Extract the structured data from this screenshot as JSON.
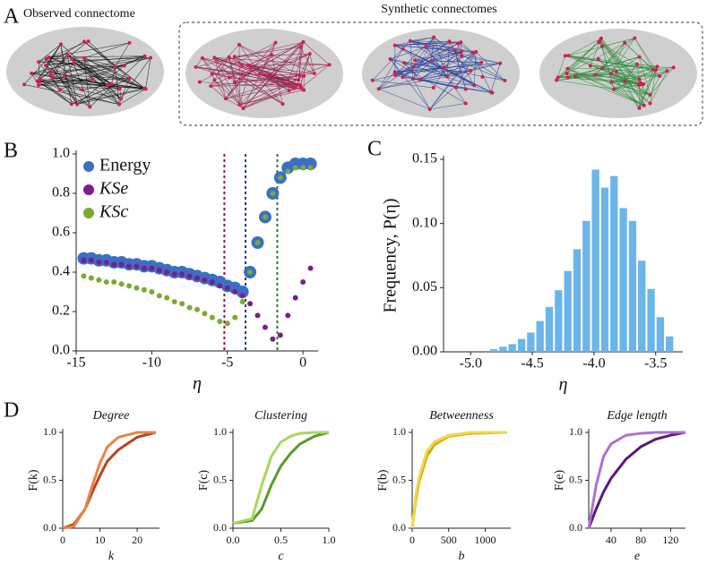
{
  "panel_labels": [
    "A",
    "B",
    "C",
    "D"
  ],
  "panel_a": {
    "observed_title": "Observed connectome",
    "synthetic_title": "Synthetic connectomes"
  },
  "chart_data": [
    {
      "type": "scatter",
      "xlabel": "η",
      "x": [
        -14.5,
        -14,
        -13.5,
        -13,
        -12.5,
        -12,
        -11.5,
        -11,
        -10.5,
        -10,
        -9.5,
        -9,
        -8.5,
        -8,
        -7.5,
        -7,
        -6.5,
        -6,
        -5.5,
        -5,
        -4.5,
        -4,
        -3.5,
        -3,
        -2.5,
        -2,
        -1.5,
        -1,
        -0.5,
        0,
        0.5
      ],
      "series": [
        {
          "name": "Energy",
          "color": "#3a6fc4",
          "values": [
            0.47,
            0.47,
            0.46,
            0.46,
            0.45,
            0.45,
            0.44,
            0.44,
            0.43,
            0.43,
            0.42,
            0.41,
            0.4,
            0.4,
            0.39,
            0.38,
            0.37,
            0.36,
            0.35,
            0.33,
            0.32,
            0.3,
            0.4,
            0.55,
            0.68,
            0.8,
            0.88,
            0.93,
            0.95,
            0.95,
            0.95
          ]
        },
        {
          "name": "KSe",
          "color": "#7a1f8a",
          "values": [
            0.46,
            0.46,
            0.45,
            0.45,
            0.44,
            0.44,
            0.43,
            0.43,
            0.42,
            0.42,
            0.41,
            0.4,
            0.39,
            0.39,
            0.38,
            0.37,
            0.36,
            0.35,
            0.33,
            0.32,
            0.3,
            0.28,
            0.24,
            0.18,
            0.12,
            0.06,
            0.08,
            0.18,
            0.27,
            0.35,
            0.42
          ]
        },
        {
          "name": "KSc",
          "color": "#7aaa30",
          "values": [
            0.38,
            0.37,
            0.36,
            0.35,
            0.35,
            0.34,
            0.33,
            0.32,
            0.31,
            0.3,
            0.28,
            0.27,
            0.25,
            0.24,
            0.22,
            0.21,
            0.19,
            0.17,
            0.15,
            0.14,
            0.17,
            0.25,
            0.4,
            0.55,
            0.68,
            0.8,
            0.88,
            0.91,
            0.93,
            0.93,
            0.93
          ]
        }
      ],
      "vlines": [
        {
          "value": -5.2,
          "color": "#8b1a3a"
        },
        {
          "value": -3.8,
          "color": "#1f3a8a"
        },
        {
          "value": -1.7,
          "color": "#2a7a30"
        }
      ],
      "xlim": [
        -15,
        1
      ],
      "xticks": [
        -15,
        -10,
        -5,
        0
      ],
      "ylim": [
        0,
        1
      ],
      "yticks": [
        {
          "value": 0,
          "label": "0.0"
        },
        0.2,
        0.4,
        0.6,
        0.8,
        {
          "value": 1,
          "label": "1.0"
        }
      ]
    },
    {
      "type": "histogram",
      "xlabel": "η",
      "ylabel": "Frequency, P(η)",
      "color": "#6bb5e8",
      "bins": [
        -4.85,
        -4.775,
        -4.7,
        -4.625,
        -4.55,
        -4.475,
        -4.4,
        -4.325,
        -4.25,
        -4.175,
        -4.1,
        -4.025,
        -3.95,
        -3.875,
        -3.8,
        -3.725,
        -3.65,
        -3.575,
        -3.5,
        -3.425,
        -3.35
      ],
      "values": [
        0.002,
        0.004,
        0.006,
        0.01,
        0.015,
        0.024,
        0.035,
        0.048,
        0.063,
        0.08,
        0.102,
        0.142,
        0.128,
        0.137,
        0.112,
        0.102,
        0.071,
        0.049,
        0.027,
        0.012
      ],
      "xlim": [
        -5.22,
        -3.28
      ],
      "xticks": [
        {
          "value": -5,
          "label": "-5.0"
        },
        -4.5,
        {
          "value": -4,
          "label": "-4.0"
        },
        -3.5
      ],
      "ylim": [
        0,
        0.15
      ],
      "yticks": [
        {
          "value": 0,
          "label": "0.00"
        },
        0.05,
        {
          "value": 0.1,
          "label": "0.10"
        },
        0.15
      ]
    },
    {
      "type": "line",
      "title": "Degree",
      "xlabel": "k",
      "ylabel": "F(k)",
      "x": [
        0,
        3,
        6,
        8,
        10,
        12,
        15,
        20,
        25
      ],
      "series": [
        {
          "color": "#b5441a",
          "values": [
            0,
            0.04,
            0.2,
            0.38,
            0.55,
            0.7,
            0.82,
            0.95,
            1
          ]
        },
        {
          "color": "#e8844a",
          "values": [
            0,
            0.02,
            0.2,
            0.45,
            0.68,
            0.85,
            0.95,
            1,
            1
          ]
        }
      ],
      "xlim": [
        0,
        26
      ],
      "xticks": [
        0,
        10,
        20
      ],
      "ylim": [
        0,
        1
      ],
      "yticks": [
        {
          "value": 0,
          "label": "0.0"
        },
        0.5,
        {
          "value": 1,
          "label": "1.0"
        }
      ]
    },
    {
      "type": "line",
      "title": "Clustering",
      "xlabel": "c",
      "ylabel": "F(c)",
      "x": [
        0,
        0.2,
        0.3,
        0.4,
        0.5,
        0.6,
        0.7,
        0.85,
        1
      ],
      "series": [
        {
          "color": "#5a9a2a",
          "values": [
            0.05,
            0.08,
            0.2,
            0.45,
            0.65,
            0.78,
            0.88,
            0.96,
            1
          ]
        },
        {
          "color": "#a8d860",
          "values": [
            0.05,
            0.1,
            0.45,
            0.75,
            0.9,
            0.96,
            0.99,
            1,
            1
          ]
        }
      ],
      "xlim": [
        0,
        1
      ],
      "xticks": [
        {
          "value": 0,
          "label": "0.0"
        },
        0.5,
        {
          "value": 1,
          "label": "1.0"
        }
      ],
      "ylim": [
        0,
        1
      ],
      "yticks": [
        {
          "value": 0,
          "label": "0.0"
        },
        0.5,
        {
          "value": 1,
          "label": "1.0"
        }
      ]
    },
    {
      "type": "line",
      "title": "Betweenness",
      "xlabel": "b",
      "ylabel": "F(b)",
      "x": [
        0,
        50,
        100,
        200,
        300,
        500,
        800,
        1300
      ],
      "series": [
        {
          "color": "#d8a800",
          "values": [
            0,
            0.3,
            0.5,
            0.75,
            0.87,
            0.96,
            0.99,
            1
          ]
        },
        {
          "color": "#f0d850",
          "values": [
            0,
            0.35,
            0.55,
            0.8,
            0.9,
            0.97,
            1,
            1
          ]
        }
      ],
      "xlim": [
        0,
        1350
      ],
      "xticks": [
        0,
        500,
        1000
      ],
      "ylim": [
        0,
        1
      ],
      "yticks": [
        {
          "value": 0,
          "label": "0.0"
        },
        0.5,
        {
          "value": 1,
          "label": "1.0"
        }
      ]
    },
    {
      "type": "line",
      "title": "Edge length",
      "xlabel": "e",
      "ylabel": "F(e)",
      "x": [
        10,
        20,
        30,
        40,
        60,
        80,
        100,
        120,
        140
      ],
      "series": [
        {
          "color": "#5a1a7a",
          "values": [
            0,
            0.2,
            0.38,
            0.52,
            0.72,
            0.85,
            0.93,
            0.97,
            1
          ]
        },
        {
          "color": "#b070d0",
          "values": [
            0,
            0.45,
            0.75,
            0.88,
            0.97,
            0.99,
            1,
            1,
            1
          ]
        }
      ],
      "xlim": [
        10,
        140
      ],
      "xticks": [
        40,
        80,
        120
      ],
      "ylim": [
        0,
        1
      ],
      "yticks": [
        {
          "value": 0,
          "label": "0.0"
        },
        0.5,
        {
          "value": 1,
          "label": "1.0"
        }
      ]
    }
  ]
}
